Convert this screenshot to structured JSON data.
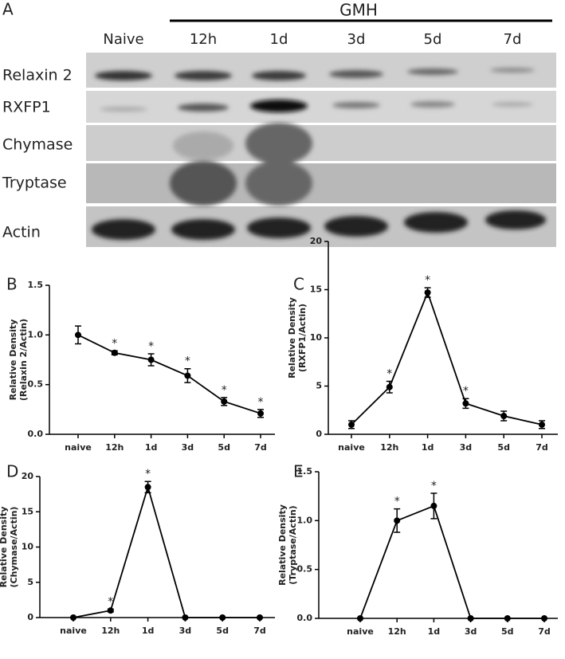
{
  "blot": {
    "panel": "A",
    "group": "GMH",
    "lanes": [
      "Naive",
      "12h",
      "1d",
      "3d",
      "5d",
      "7d"
    ],
    "bands": [
      "Relaxin 2",
      "RXFP1",
      "Chymase",
      "Tryptase",
      "Actin"
    ]
  },
  "chart_data": [
    {
      "type": "line",
      "panel": "B",
      "ylabel": [
        "Relative Density",
        "(Relaxin 2/Actin)"
      ],
      "categories": [
        "naive",
        "12h",
        "1d",
        "3d",
        "5d",
        "7d"
      ],
      "series": [
        {
          "color": "#000000",
          "values": [
            1.0,
            0.82,
            0.75,
            0.59,
            0.33,
            0.21
          ],
          "errors": [
            0.09,
            0.02,
            0.06,
            0.07,
            0.04,
            0.04
          ]
        }
      ],
      "annotations": [
        null,
        "*",
        "*",
        "*",
        "*",
        "*"
      ],
      "ylim": [
        0,
        1.5
      ],
      "yticks": [
        {
          "value": 0,
          "label": "0.0"
        },
        0.5,
        {
          "value": 1,
          "label": "1.0"
        },
        1.5
      ]
    },
    {
      "type": "line",
      "panel": "C",
      "ylabel": [
        "Relative Density",
        "(RXFP1/Actin)"
      ],
      "categories": [
        "naive",
        "12h",
        "1d",
        "3d",
        "5d",
        "7d"
      ],
      "series": [
        {
          "color": "#000000",
          "values": [
            1.0,
            4.9,
            14.7,
            3.2,
            1.9,
            1.0
          ],
          "errors": [
            0.4,
            0.6,
            0.5,
            0.5,
            0.5,
            0.4
          ]
        }
      ],
      "annotations": [
        null,
        "*",
        "*",
        "*",
        null,
        null
      ],
      "ylim": [
        0,
        20
      ],
      "yticks": [
        0,
        5,
        10,
        15,
        20
      ]
    },
    {
      "type": "line",
      "panel": "D",
      "ylabel": [
        "Relative Density",
        "(Chymase/Actin)"
      ],
      "categories": [
        "naive",
        "12h",
        "1d",
        "3d",
        "5d",
        "7d"
      ],
      "series": [
        {
          "color": "#000000",
          "values": [
            0,
            1.0,
            18.5,
            0,
            0,
            0
          ],
          "errors": [
            0,
            0.2,
            0.8,
            0,
            0,
            0
          ]
        }
      ],
      "annotations": [
        null,
        "*",
        "*",
        null,
        null,
        null
      ],
      "ylim": [
        0,
        20
      ],
      "yticks": [
        0,
        5,
        10,
        15,
        20
      ]
    },
    {
      "type": "line",
      "panel": "E",
      "ylabel": [
        "Relative Density",
        "(Tryptase/Actin)"
      ],
      "categories": [
        "naive",
        "12h",
        "1d",
        "3d",
        "5d",
        "7d"
      ],
      "series": [
        {
          "color": "#000000",
          "values": [
            0,
            1.0,
            1.15,
            0,
            0,
            0
          ],
          "errors": [
            0,
            0.12,
            0.13,
            0,
            0,
            0
          ]
        }
      ],
      "annotations": [
        null,
        "*",
        "*",
        null,
        null,
        null
      ],
      "ylim": [
        0,
        1.5
      ],
      "yticks": [
        {
          "value": 0,
          "label": "0.0"
        },
        0.5,
        {
          "value": 1,
          "label": "1.0"
        },
        1.5
      ]
    }
  ]
}
